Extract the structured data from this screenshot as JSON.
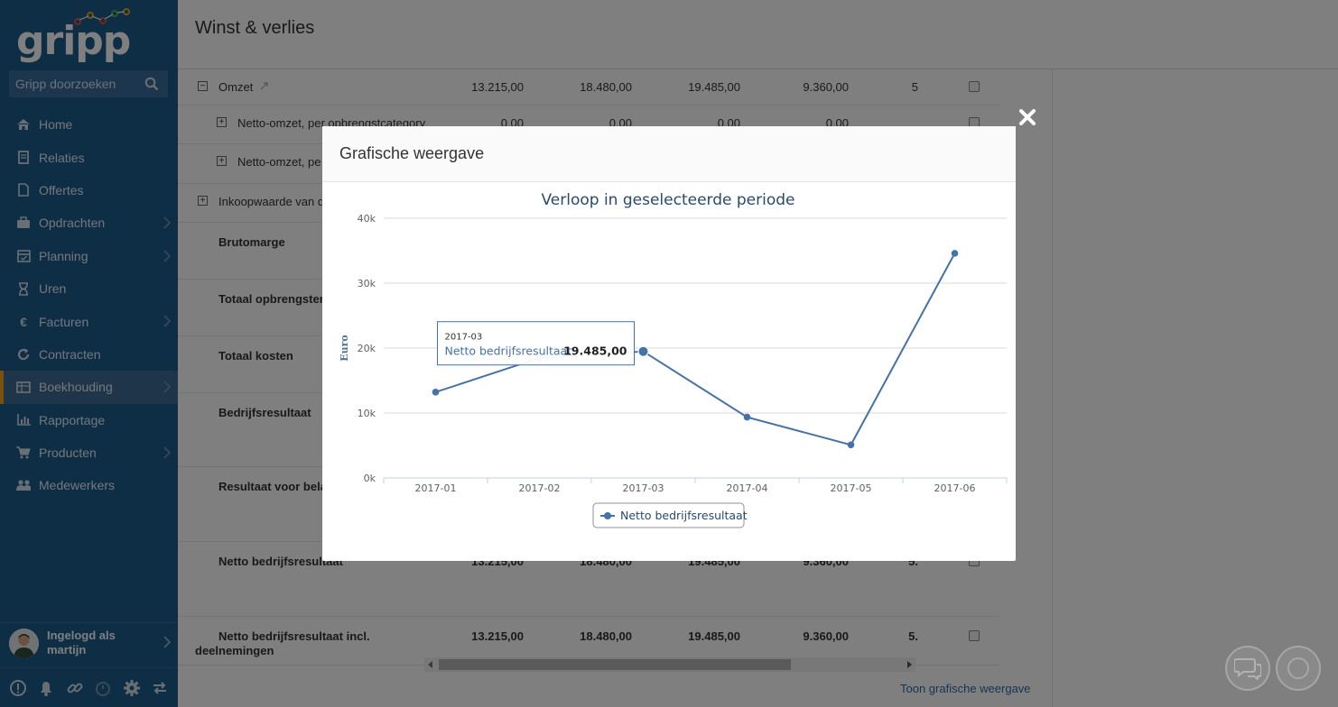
{
  "app": {
    "logo_text": "gripp"
  },
  "search": {
    "placeholder": "Gripp doorzoeken"
  },
  "sidebar": {
    "items": [
      {
        "label": "Home",
        "icon": "home-icon",
        "has_submenu": false
      },
      {
        "label": "Relaties",
        "icon": "address-book-icon",
        "has_submenu": false
      },
      {
        "label": "Offertes",
        "icon": "document-icon",
        "has_submenu": false
      },
      {
        "label": "Opdrachten",
        "icon": "briefcase-icon",
        "has_submenu": true
      },
      {
        "label": "Planning",
        "icon": "calendar-icon",
        "has_submenu": true
      },
      {
        "label": "Uren",
        "icon": "hourglass-icon",
        "has_submenu": false
      },
      {
        "label": "Facturen",
        "icon": "euro-icon",
        "has_submenu": true
      },
      {
        "label": "Contracten",
        "icon": "refresh-icon",
        "has_submenu": false
      },
      {
        "label": "Boekhouding",
        "icon": "ledger-icon",
        "has_submenu": true,
        "active": true
      },
      {
        "label": "Rapportage",
        "icon": "bar-chart-icon",
        "has_submenu": false
      },
      {
        "label": "Producten",
        "icon": "cart-icon",
        "has_submenu": true
      },
      {
        "label": "Medewerkers",
        "icon": "users-icon",
        "has_submenu": false
      }
    ],
    "user": {
      "line1": "Ingelogd als",
      "line2": "martijn"
    },
    "accent_color": "#f4a11c",
    "background_color": "#1d5c8c"
  },
  "page": {
    "title": "Winst & verlies",
    "toon_link": "Toon grafische weergave"
  },
  "table": {
    "rows": [
      {
        "label": "Omzet",
        "expand": "minus",
        "bold": false,
        "values": [
          "13.215,00",
          "18.480,00",
          "19.485,00",
          "9.360,00",
          "5"
        ]
      },
      {
        "label": "Netto-omzet, per opbrengstcategory",
        "expand": "plus",
        "bold": false,
        "values": [
          "0,00",
          "0,00",
          "0,00",
          "0,00",
          ""
        ]
      },
      {
        "label": "Netto-omzet, pe",
        "expand": "plus",
        "bold": false,
        "values": []
      },
      {
        "label": "Inkoopwaarde van d",
        "expand": "plus",
        "bold": false,
        "values": []
      },
      {
        "label": "Brutomarge",
        "bold": true,
        "values": []
      },
      {
        "label": "Totaal opbrengsten",
        "bold": true,
        "values": []
      },
      {
        "label": "Totaal kosten",
        "bold": true,
        "values": []
      },
      {
        "label": "Bedrijfsresultaat",
        "bold": true,
        "values": []
      },
      {
        "label": "Resultaat voor bela",
        "bold": true,
        "values": []
      },
      {
        "label": "Netto bedrijfsresultaat",
        "bold": true,
        "values": [
          "13.215,00",
          "18.480,00",
          "19.485,00",
          "9.360,00",
          "5."
        ]
      },
      {
        "label": "Netto bedrijfsresultaat incl.",
        "label2": "deelnemingen",
        "bold": true,
        "values": [
          "13.215,00",
          "18.480,00",
          "19.485,00",
          "9.360,00",
          "5."
        ]
      }
    ]
  },
  "modal": {
    "title": "Grafische weergave",
    "close_icon": "close-icon"
  },
  "chart_data": {
    "type": "line",
    "title": "Verloop in geselecteerde periode",
    "xlabel": "",
    "ylabel": "Euro",
    "categories": [
      "2017-01",
      "2017-02",
      "2017-03",
      "2017-04",
      "2017-05",
      "2017-06"
    ],
    "series": [
      {
        "name": "Netto bedrijfsresultaat",
        "values": [
          13215,
          18480,
          19485,
          9360,
          5100,
          34600
        ],
        "color": "#4572a7"
      }
    ],
    "ylim": [
      0,
      40000
    ],
    "yticks": [
      "0k",
      "10k",
      "20k",
      "30k",
      "40k"
    ],
    "grid": true,
    "legend": "bottom-center",
    "tooltip": {
      "category": "2017-03",
      "series": "Netto bedrijfsresultaat",
      "label": "Netto bedrijfsresultaat:",
      "value": "19.485,00"
    }
  }
}
